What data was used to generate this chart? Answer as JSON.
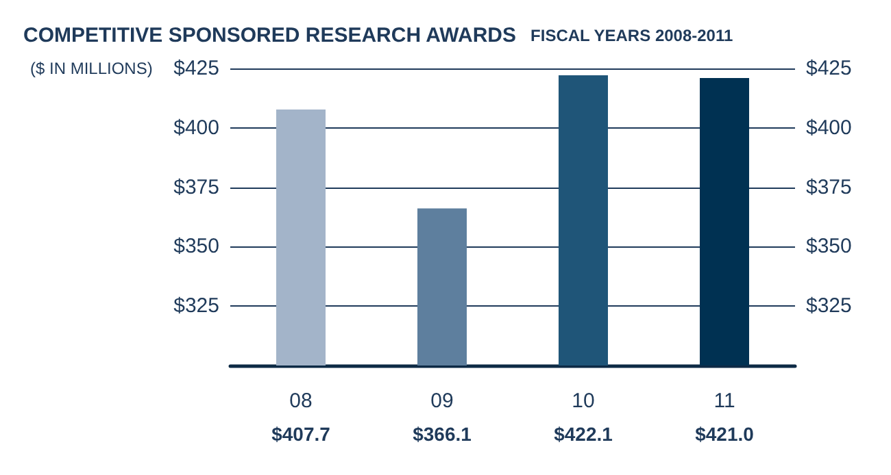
{
  "chart_data": {
    "type": "bar",
    "title": "COMPETITIVE SPONSORED RESEARCH AWARDS",
    "subtitle": "FISCAL YEARS 2008-2011",
    "ylabel": "($ IN MILLIONS)",
    "categories": [
      "08",
      "09",
      "10",
      "11"
    ],
    "values": [
      407.7,
      366.1,
      422.1,
      421.0
    ],
    "colors": [
      "#a3b4c9",
      "#5e7f9e",
      "#1f5578",
      "#003152"
    ],
    "value_labels": [
      "$407.7",
      "$366.1",
      "$422.1",
      "$421.0"
    ],
    "ylim": [
      300,
      425
    ],
    "yticks": [
      {
        "value": 325,
        "label": "$325"
      },
      {
        "value": 350,
        "label": "$350"
      },
      {
        "value": 375,
        "label": "$375"
      },
      {
        "value": 400,
        "label": "$400"
      },
      {
        "value": 425,
        "label": "$425"
      }
    ],
    "y2lim": [
      300,
      425
    ],
    "y2ticks": [
      {
        "value": 325,
        "label": "$325"
      },
      {
        "value": 350,
        "label": "$350"
      },
      {
        "value": 375,
        "label": "$375"
      },
      {
        "value": 400,
        "label": "$400"
      },
      {
        "value": 425,
        "label": "$425"
      }
    ],
    "grid": "y"
  }
}
